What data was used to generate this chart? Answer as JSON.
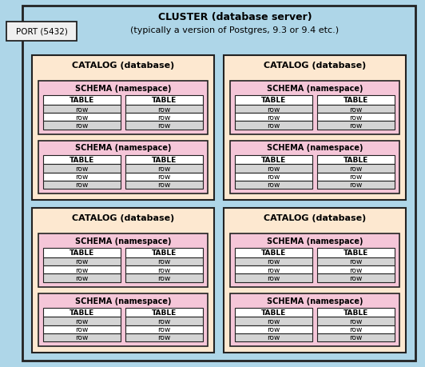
{
  "title_line1": "CLUSTER (database server)",
  "title_line2": "(typically a version of Postgres, 9.3 or 9.4 etc.)",
  "port_label": "PORT (5432)",
  "catalog_label": "CATALOG (database)",
  "schema_label": "SCHEMA (namespace)",
  "table_label": "TABLE",
  "row_label": "row",
  "cluster_bg": "#aed6e8",
  "catalog_bg": "#fde8d0",
  "schema_bg": "#f5c6d8",
  "table_header_bg": "#ffffff",
  "row_bg1": "#d4d4d4",
  "row_bg2": "#ffffff",
  "border_color": "#222222",
  "port_box_bg": "#f0f0f0",
  "fig_w": 5.32,
  "fig_h": 4.6,
  "dpi": 100
}
